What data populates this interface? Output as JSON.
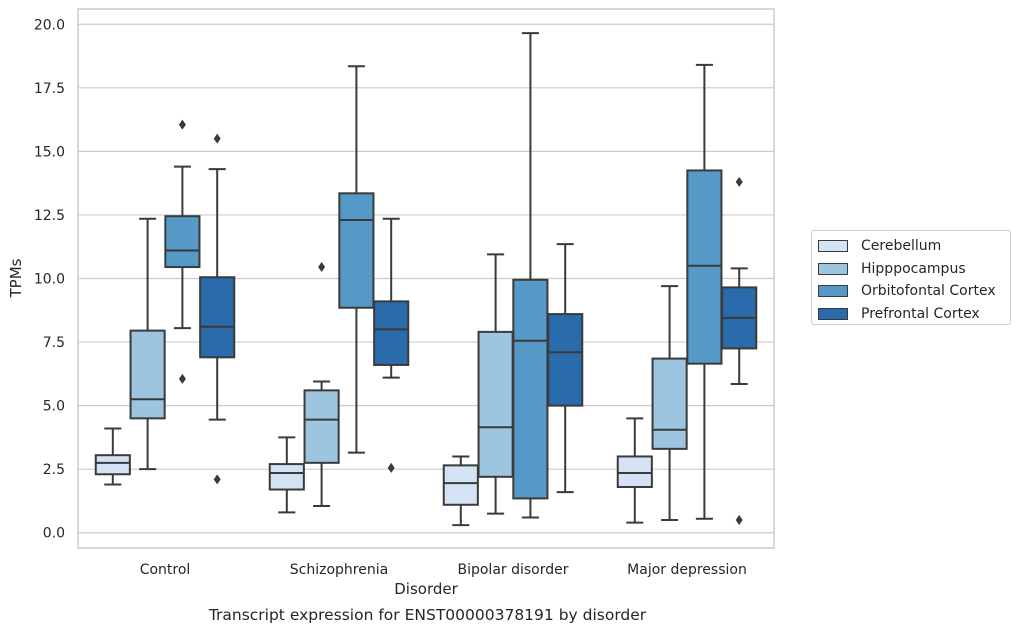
{
  "caption": "Transcript expression for ENST00000378191 by disorder",
  "chart_data": {
    "type": "boxplot",
    "title": "",
    "xlabel": "Disorder",
    "ylabel": "TPMs",
    "categories": [
      "Control",
      "Schizophrenia",
      "Bipolar disorder",
      "Major depression"
    ],
    "ylim": [
      -0.6,
      20.6
    ],
    "yticks": [
      0.0,
      2.5,
      5.0,
      7.5,
      10.0,
      12.5,
      15.0,
      17.5,
      20.0
    ],
    "ytick_labels": [
      "0.0",
      "2.5",
      "5.0",
      "7.5",
      "10.0",
      "12.5",
      "15.0",
      "17.5",
      "20.0"
    ],
    "grid": "horizontal",
    "legend_position": "right",
    "series": [
      {
        "name": "Cerebellum",
        "color": "#d4e3f3",
        "boxes": [
          {
            "whislo": 1.9,
            "q1": 2.3,
            "med": 2.75,
            "q3": 3.05,
            "whishi": 4.1,
            "fliers": []
          },
          {
            "whislo": 0.8,
            "q1": 1.7,
            "med": 2.35,
            "q3": 2.7,
            "whishi": 3.75,
            "fliers": []
          },
          {
            "whislo": 0.3,
            "q1": 1.1,
            "med": 1.95,
            "q3": 2.65,
            "whishi": 3.0,
            "fliers": []
          },
          {
            "whislo": 0.4,
            "q1": 1.8,
            "med": 2.35,
            "q3": 3.0,
            "whishi": 4.5,
            "fliers": []
          }
        ]
      },
      {
        "name": "Hipppocampus",
        "color": "#9dc5df",
        "boxes": [
          {
            "whislo": 2.5,
            "q1": 4.5,
            "med": 5.25,
            "q3": 7.95,
            "whishi": 12.35,
            "fliers": []
          },
          {
            "whislo": 1.05,
            "q1": 2.75,
            "med": 4.45,
            "q3": 5.6,
            "whishi": 5.95,
            "fliers": [
              10.45
            ]
          },
          {
            "whislo": 0.75,
            "q1": 2.2,
            "med": 4.15,
            "q3": 7.9,
            "whishi": 10.95,
            "fliers": []
          },
          {
            "whislo": 0.5,
            "q1": 3.3,
            "med": 4.05,
            "q3": 6.85,
            "whishi": 9.7,
            "fliers": []
          }
        ]
      },
      {
        "name": "Orbitofontal Cortex",
        "color": "#5599c7",
        "boxes": [
          {
            "whislo": 8.05,
            "q1": 10.45,
            "med": 11.1,
            "q3": 12.45,
            "whishi": 14.4,
            "fliers": [
              16.05,
              6.05
            ]
          },
          {
            "whislo": 3.15,
            "q1": 8.85,
            "med": 12.3,
            "q3": 13.35,
            "whishi": 18.35,
            "fliers": []
          },
          {
            "whislo": 0.6,
            "q1": 1.35,
            "med": 7.55,
            "q3": 9.95,
            "whishi": 19.65,
            "fliers": []
          },
          {
            "whislo": 0.55,
            "q1": 6.65,
            "med": 10.5,
            "q3": 14.25,
            "whishi": 18.4,
            "fliers": []
          }
        ]
      },
      {
        "name": "Prefrontal Cortex",
        "color": "#2a6bac",
        "boxes": [
          {
            "whislo": 4.45,
            "q1": 6.9,
            "med": 8.1,
            "q3": 10.05,
            "whishi": 14.3,
            "fliers": [
              15.5,
              2.1
            ]
          },
          {
            "whislo": 6.1,
            "q1": 6.6,
            "med": 8.0,
            "q3": 9.1,
            "whishi": 12.35,
            "fliers": [
              2.55
            ]
          },
          {
            "whislo": 1.6,
            "q1": 5.0,
            "med": 7.1,
            "q3": 8.6,
            "whishi": 11.35,
            "fliers": []
          },
          {
            "whislo": 5.85,
            "q1": 7.25,
            "med": 8.45,
            "q3": 9.65,
            "whishi": 10.4,
            "fliers": [
              13.8,
              0.5
            ]
          }
        ]
      }
    ]
  }
}
